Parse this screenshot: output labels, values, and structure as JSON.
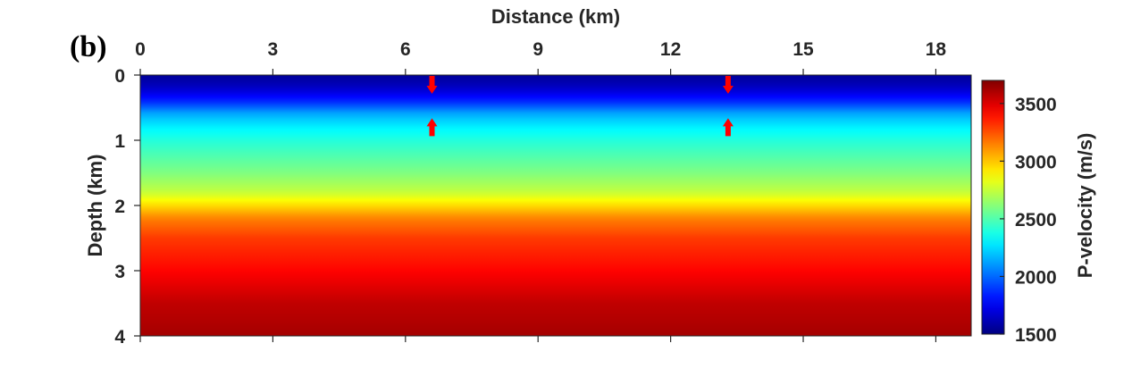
{
  "panel_label": "(b)",
  "chart_data": {
    "type": "heatmap",
    "title": "",
    "xlabel": "Distance (km)",
    "ylabel": "Depth (km)",
    "xlim": [
      0,
      18.8
    ],
    "ylim": [
      0,
      4
    ],
    "y_reversed": true,
    "x_axis_position": "top",
    "x_ticks": [
      0,
      3,
      6,
      9,
      12,
      15,
      18
    ],
    "y_ticks": [
      0,
      1,
      2,
      3,
      4
    ],
    "colorbar": {
      "label": "P-velocity (m/s)",
      "colormap": "jet",
      "range": [
        1500,
        3700
      ],
      "ticks": [
        1500,
        2000,
        2500,
        3000,
        3500
      ]
    },
    "depth_velocity_profile": [
      {
        "depth": 0.0,
        "velocity": 1550
      },
      {
        "depth": 0.2,
        "velocity": 1650
      },
      {
        "depth": 0.4,
        "velocity": 1850
      },
      {
        "depth": 0.6,
        "velocity": 2150
      },
      {
        "depth": 0.8,
        "velocity": 2300
      },
      {
        "depth": 1.0,
        "velocity": 2400
      },
      {
        "depth": 1.2,
        "velocity": 2480
      },
      {
        "depth": 1.5,
        "velocity": 2600
      },
      {
        "depth": 1.8,
        "velocity": 2750
      },
      {
        "depth": 2.0,
        "velocity": 2950
      },
      {
        "depth": 2.2,
        "velocity": 3150
      },
      {
        "depth": 2.5,
        "velocity": 3300
      },
      {
        "depth": 3.0,
        "velocity": 3420
      },
      {
        "depth": 3.5,
        "velocity": 3560
      },
      {
        "depth": 4.0,
        "velocity": 3620
      }
    ],
    "annotations": [
      {
        "type": "arrow-down",
        "x": 6.6,
        "depth": 0.15,
        "color": "#ff0000"
      },
      {
        "type": "arrow-up",
        "x": 6.6,
        "depth": 0.8,
        "color": "#ff0000"
      },
      {
        "type": "arrow-down",
        "x": 13.3,
        "depth": 0.15,
        "color": "#ff0000"
      },
      {
        "type": "arrow-up",
        "x": 13.3,
        "depth": 0.8,
        "color": "#ff0000"
      }
    ]
  }
}
